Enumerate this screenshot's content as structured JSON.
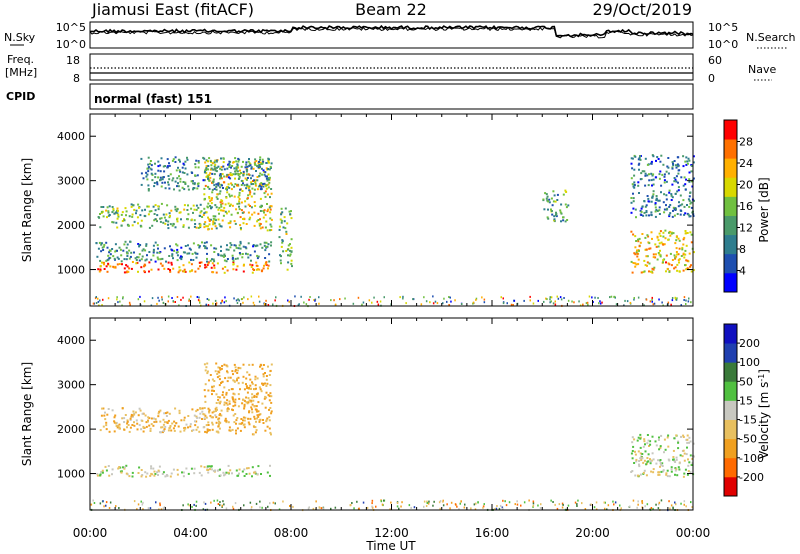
{
  "header": {
    "station": "Jiamusi East (fitACF)",
    "beam": "Beam 22",
    "date": "29/Oct/2019"
  },
  "noise_panel": {
    "left_label": "N.Sky",
    "right_label": "N.Search",
    "left_ticks": [
      "10^5",
      "10^0"
    ],
    "right_ticks": [
      "10^5",
      "10^0"
    ]
  },
  "freq_panel": {
    "left_label_line1": "Freq.",
    "left_label_line2": "[MHz]",
    "right_label": "Nave",
    "left_ticks": [
      "18",
      "8"
    ],
    "right_ticks": [
      "60",
      "0"
    ]
  },
  "cpid_panel": {
    "label": "CPID",
    "text": "normal (fast) 151"
  },
  "x_axis": {
    "label": "Time UT",
    "ticks": [
      "00:00",
      "04:00",
      "08:00",
      "12:00",
      "16:00",
      "20:00",
      "00:00"
    ]
  },
  "colors": {
    "power_scale": [
      "#0000ff",
      "#1e4fb0",
      "#2e7d8e",
      "#4a9a6a",
      "#70c040",
      "#d8d800",
      "#ffb000",
      "#ff7000",
      "#ff0000"
    ],
    "velocity_scale": [
      "#e00000",
      "#ff6a00",
      "#f0a020",
      "#e8c060",
      "#c8c8c0",
      "#50c040",
      "#3a7a3a",
      "#2040b0",
      "#1010c0"
    ]
  },
  "chart_data": [
    {
      "type": "heatmap",
      "panel": "power",
      "ylabel": "Slant Range [km]",
      "ylim": [
        180,
        4500
      ],
      "yticks": [
        1000,
        2000,
        3000,
        4000
      ],
      "xlim": [
        0,
        24
      ],
      "colorbar": {
        "label": "Power [dB]",
        "range": [
          0,
          32
        ],
        "ticks": [
          "4",
          "8",
          "12",
          "16",
          "20",
          "24",
          "28"
        ]
      },
      "regions": [
        {
          "t": [
            0.2,
            7.2
          ],
          "r": [
            950,
            1200
          ],
          "level": 0.85
        },
        {
          "t": [
            0.2,
            7.2
          ],
          "r": [
            1200,
            1650
          ],
          "level": 0.3
        },
        {
          "t": [
            0.3,
            5.2
          ],
          "r": [
            1950,
            2500
          ],
          "level": 0.45
        },
        {
          "t": [
            4.5,
            7.2
          ],
          "r": [
            1900,
            3500
          ],
          "level": 0.6
        },
        {
          "t": [
            2.0,
            7.2
          ],
          "r": [
            2800,
            3550
          ],
          "level": 0.3
        },
        {
          "t": [
            7.5,
            8.0
          ],
          "r": [
            1000,
            2400
          ],
          "level": 0.5
        },
        {
          "t": [
            18.0,
            19.0
          ],
          "r": [
            2100,
            2800
          ],
          "level": 0.35
        },
        {
          "t": [
            21.5,
            24.0
          ],
          "r": [
            950,
            1900
          ],
          "level": 0.7
        },
        {
          "t": [
            21.5,
            24.0
          ],
          "r": [
            2200,
            3600
          ],
          "level": 0.25
        }
      ],
      "ground_scatter": {
        "r": [
          200,
          420
        ]
      }
    },
    {
      "type": "heatmap",
      "panel": "velocity",
      "ylabel": "Slant Range [km]",
      "ylim": [
        180,
        4500
      ],
      "yticks": [
        1000,
        2000,
        3000,
        4000
      ],
      "xlim": [
        0,
        24
      ],
      "colorbar": {
        "label_main": "Velocity [m s",
        "label_sup": "-1",
        "label_end": "]",
        "range": [
          -250,
          250
        ],
        "ticks": [
          "200",
          "100",
          "50",
          "15",
          "-15",
          "-50",
          "-100",
          "-200"
        ]
      },
      "regions": [
        {
          "t": [
            0.2,
            7.2
          ],
          "r": [
            950,
            1200
          ],
          "v": 0
        },
        {
          "t": [
            0.3,
            5.2
          ],
          "r": [
            1950,
            2500
          ],
          "v": -40
        },
        {
          "t": [
            4.5,
            7.2
          ],
          "r": [
            1900,
            3500
          ],
          "v": -60
        },
        {
          "t": [
            21.5,
            24.0
          ],
          "r": [
            950,
            1900
          ],
          "v": 0
        }
      ]
    }
  ]
}
